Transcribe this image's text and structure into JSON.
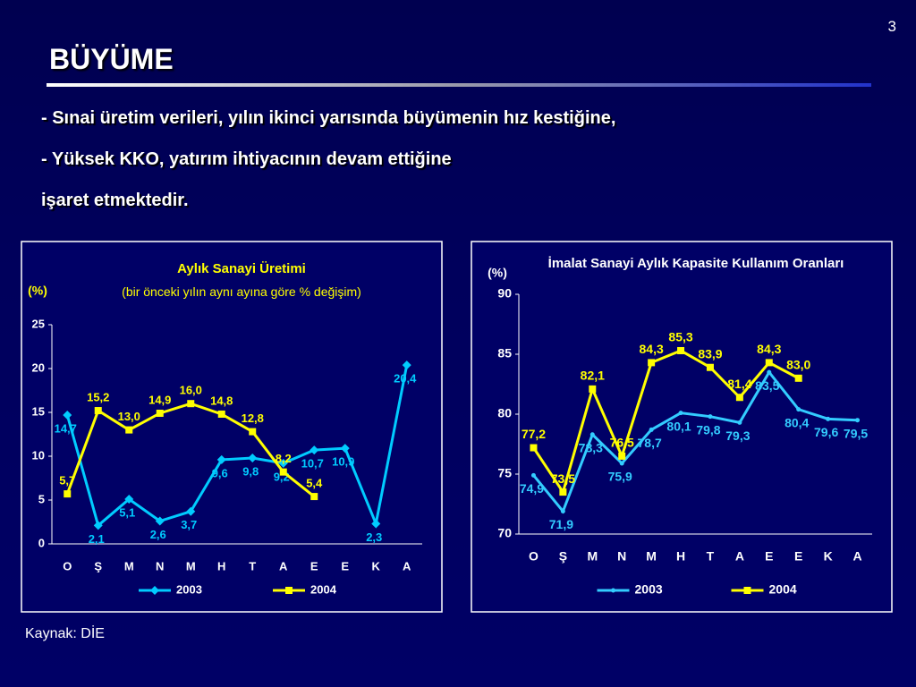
{
  "page_number": "3",
  "title": "BÜYÜME",
  "bullets": [
    "- Sınai üretim verileri, yılın ikinci yarısında büyümenin hız kestiğine,",
    "- Yüksek KKO, yatırım ihtiyacının devam ettiğine",
    "işaret etmektedir."
  ],
  "source": "Kaynak: DİE",
  "chart_data": [
    {
      "type": "line",
      "title": "Aylık Sanayi Üretimi",
      "subtitle": "(bir önceki yılın aynı ayına göre % değişim)",
      "y_label": "(%)",
      "categories": [
        "O",
        "Ş",
        "M",
        "N",
        "M",
        "H",
        "T",
        "A",
        "E",
        "E",
        "K",
        "A"
      ],
      "ylim": [
        0,
        25
      ],
      "yticks": [
        0,
        5,
        10,
        15,
        20,
        25
      ],
      "series": [
        {
          "name": "2003",
          "color": "#00ccff",
          "marker": "diamond",
          "values": [
            14.7,
            2.1,
            5.1,
            2.6,
            3.7,
            9.6,
            9.8,
            9.2,
            10.7,
            10.9,
            2.3,
            20.4
          ],
          "value_labels": [
            "14,7",
            "2,1",
            "5,1",
            "2,6",
            "3,7",
            "9,6",
            "9,8",
            "9,2",
            "10,7",
            "10,9",
            "2,3",
            "20,4"
          ]
        },
        {
          "name": "2004",
          "color": "#ffff00",
          "marker": "square",
          "values": [
            5.7,
            15.2,
            13.0,
            14.9,
            16.0,
            14.8,
            12.8,
            8.2,
            5.4,
            null,
            null,
            null
          ],
          "value_labels": [
            "5,7",
            "15,2",
            "13,0",
            "14,9",
            "16,0",
            "14,8",
            "12,8",
            "8,2",
            "5,4",
            null,
            null,
            null
          ]
        }
      ]
    },
    {
      "type": "line",
      "title": "İmalat Sanayi Aylık Kapasite Kullanım Oranları",
      "y_label": "(%)",
      "categories": [
        "O",
        "Ş",
        "M",
        "N",
        "M",
        "H",
        "T",
        "A",
        "E",
        "E",
        "K",
        "A"
      ],
      "ylim": [
        70,
        90
      ],
      "yticks": [
        70,
        75,
        80,
        85,
        90
      ],
      "series": [
        {
          "name": "2003",
          "color": "#33ccff",
          "marker": "circle",
          "values": [
            74.9,
            71.9,
            78.3,
            75.9,
            78.7,
            80.1,
            79.8,
            79.3,
            83.5,
            80.4,
            79.6,
            79.5
          ],
          "value_labels": [
            "74,9",
            "71,9",
            "78,3",
            "75,9",
            "78,7",
            "80,1",
            "79,8",
            "79,3",
            "83,5",
            "80,4",
            "79,6",
            "79,5"
          ]
        },
        {
          "name": "2004",
          "color": "#ffff00",
          "marker": "square",
          "values": [
            77.2,
            73.5,
            82.1,
            76.5,
            84.3,
            85.3,
            83.9,
            81.4,
            84.3,
            83.0,
            null,
            null
          ],
          "value_labels": [
            "77,2",
            "73,5",
            "82,1",
            "76,5",
            "84,3",
            "85,3",
            "83,9",
            "81,4",
            "84,3",
            "83,0",
            null,
            null
          ]
        }
      ]
    }
  ]
}
